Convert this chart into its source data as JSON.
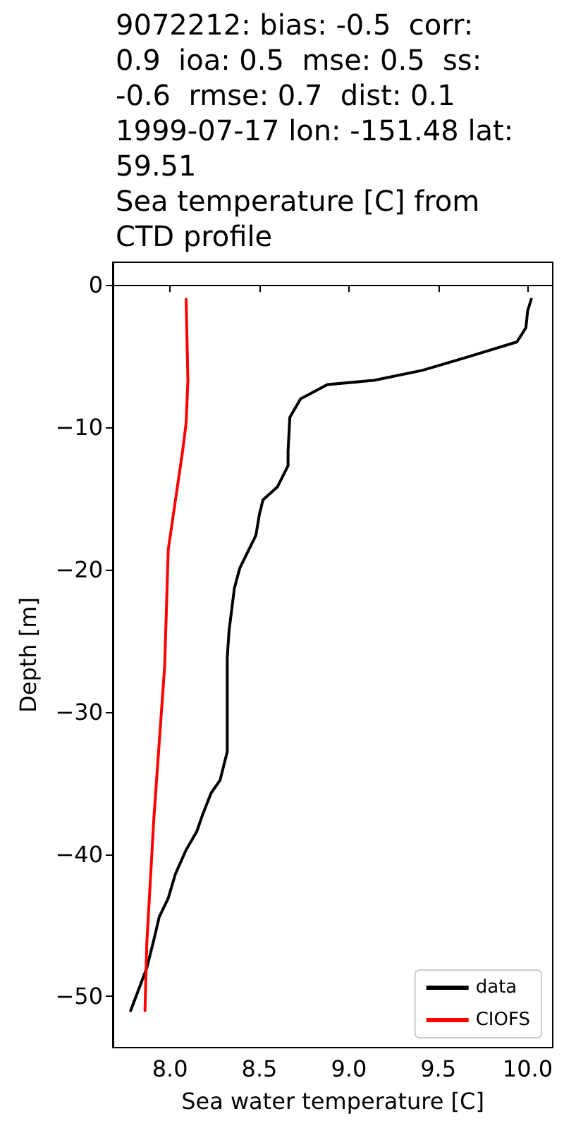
{
  "chart_data": {
    "type": "line",
    "title": "9072212: bias: -0.5  corr:\n0.9  ioa: 0.5  mse: 0.5  ss:\n-0.6  rmse: 0.7  dist: 0.1\n1999-07-17 lon: -151.48 lat:\n59.51\nSea temperature [C] from\nCTD profile",
    "xlabel": "Sea water temperature [C]",
    "ylabel": "Depth [m]",
    "xlim": [
      7.68,
      10.14
    ],
    "ylim": [
      -53.6,
      1.6
    ],
    "xticks": [
      {
        "value": 8,
        "label": "8.0"
      },
      {
        "value": 8.5,
        "label": "8.5"
      },
      {
        "value": 9,
        "label": "9.0"
      },
      {
        "value": 9.5,
        "label": "9.5"
      },
      {
        "value": 10,
        "label": "10.0"
      }
    ],
    "yticks": [
      {
        "value": 0,
        "label": "0"
      },
      {
        "value": -10,
        "label": "−10"
      },
      {
        "value": -20,
        "label": "−20"
      },
      {
        "value": -30,
        "label": "−30"
      },
      {
        "value": -40,
        "label": "−40"
      },
      {
        "value": -50,
        "label": "−50"
      }
    ],
    "legend": "bottom right",
    "marker": "none",
    "line_style": "solid",
    "series": [
      {
        "name": "data",
        "color": "#000000",
        "x": [
          10.02,
          10.0,
          9.99,
          9.94,
          9.68,
          9.41,
          9.14,
          8.88,
          8.73,
          8.67,
          8.66,
          8.66,
          8.6,
          8.52,
          8.5,
          8.48,
          8.39,
          8.36,
          8.33,
          8.32,
          8.32,
          8.28,
          8.23,
          8.18,
          8.15,
          8.09,
          8.03,
          7.99,
          7.94,
          7.91,
          7.87,
          7.78
        ],
        "values": [
          -1,
          -1.8,
          -3,
          -4,
          -5,
          -6,
          -6.7,
          -7,
          -8,
          -9.3,
          -11.7,
          -12.7,
          -14.2,
          -15.1,
          -16.1,
          -17.6,
          -19.9,
          -21.3,
          -24.3,
          -26.2,
          -32.8,
          -34.8,
          -35.7,
          -37.3,
          -38.4,
          -39.7,
          -41.4,
          -43.1,
          -44.4,
          -46,
          -48,
          -51
        ]
      },
      {
        "name": "CIOFS",
        "color": "#ff0000",
        "x": [
          8.09,
          8.1,
          8.09,
          8.07,
          7.99,
          7.97,
          7.91,
          7.87,
          7.86
        ],
        "values": [
          -1,
          -6.7,
          -9.7,
          -11.7,
          -18.6,
          -26.8,
          -37.4,
          -46.3,
          -51
        ]
      }
    ]
  }
}
